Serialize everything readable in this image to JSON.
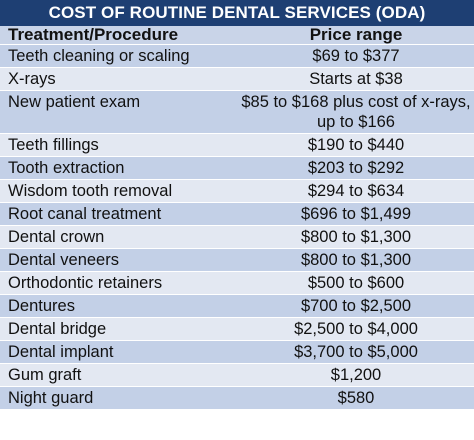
{
  "title": "COST OF ROUTINE DENTAL SERVICES (ODA)",
  "headers": {
    "treatment": "Treatment/Procedure",
    "price": "Price range"
  },
  "rows": [
    {
      "treatment": "Teeth cleaning or scaling",
      "price": "$69 to $377"
    },
    {
      "treatment": "X-rays",
      "price": "Starts at $38"
    },
    {
      "treatment": "New patient exam",
      "price": "$85 to $168 plus cost of x-rays, up to $166"
    },
    {
      "treatment": "Teeth fillings",
      "price": "$190 to $440"
    },
    {
      "treatment": "Tooth extraction",
      "price": "$203 to $292"
    },
    {
      "treatment": "Wisdom tooth removal",
      "price": "$294 to $634"
    },
    {
      "treatment": "Root canal treatment",
      "price": "$696 to $1,499"
    },
    {
      "treatment": "Dental crown",
      "price": "$800 to $1,300"
    },
    {
      "treatment": "Dental veneers",
      "price": "$800 to $1,300"
    },
    {
      "treatment": "Orthodontic retainers",
      "price": "$500 to $600"
    },
    {
      "treatment": "Dentures",
      "price": "$700 to $2,500"
    },
    {
      "treatment": "Dental bridge",
      "price": "$2,500 to $4,000"
    },
    {
      "treatment": "Dental implant",
      "price": "$3,700 to $5,000"
    },
    {
      "treatment": "Gum graft",
      "price": "$1,200"
    },
    {
      "treatment": "Night guard",
      "price": "$580"
    }
  ]
}
